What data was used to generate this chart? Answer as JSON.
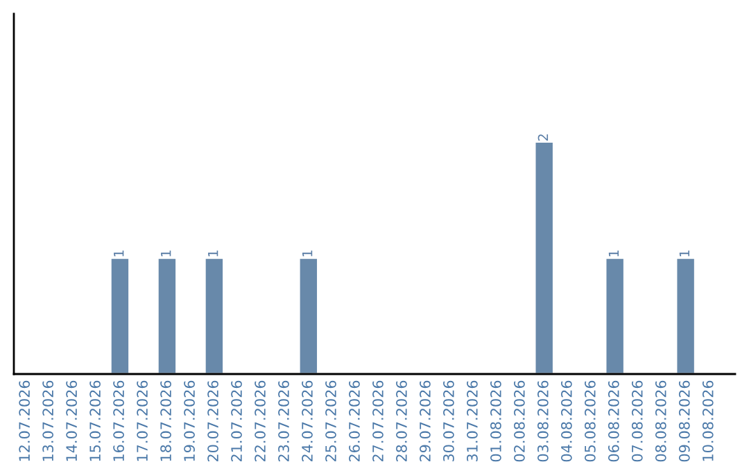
{
  "chart_data": {
    "type": "bar",
    "categories": [
      "12.07.2026",
      "13.07.2026",
      "14.07.2026",
      "15.07.2026",
      "16.07.2026",
      "17.07.2026",
      "18.07.2026",
      "19.07.2026",
      "20.07.2026",
      "21.07.2026",
      "22.07.2026",
      "23.07.2026",
      "24.07.2026",
      "25.07.2026",
      "26.07.2026",
      "27.07.2026",
      "28.07.2026",
      "29.07.2026",
      "30.07.2026",
      "31.07.2026",
      "01.08.2026",
      "02.08.2026",
      "03.08.2026",
      "04.08.2026",
      "05.08.2026",
      "06.08.2026",
      "07.08.2026",
      "08.08.2026",
      "09.08.2026",
      "10.08.2026"
    ],
    "values": [
      null,
      null,
      null,
      null,
      1,
      null,
      1,
      null,
      1,
      null,
      null,
      null,
      1,
      null,
      null,
      null,
      null,
      null,
      null,
      null,
      null,
      null,
      2,
      null,
      null,
      1,
      null,
      null,
      1,
      null
    ],
    "value_labels": [
      null,
      null,
      null,
      null,
      "1",
      null,
      "1",
      null,
      "1",
      null,
      null,
      null,
      "1",
      null,
      null,
      null,
      null,
      null,
      null,
      null,
      null,
      null,
      "2",
      null,
      null,
      "1",
      null,
      null,
      "1",
      null
    ],
    "color": "#6889aa",
    "ylim": [
      0,
      3.1
    ],
    "grid": false,
    "legend": false
  }
}
